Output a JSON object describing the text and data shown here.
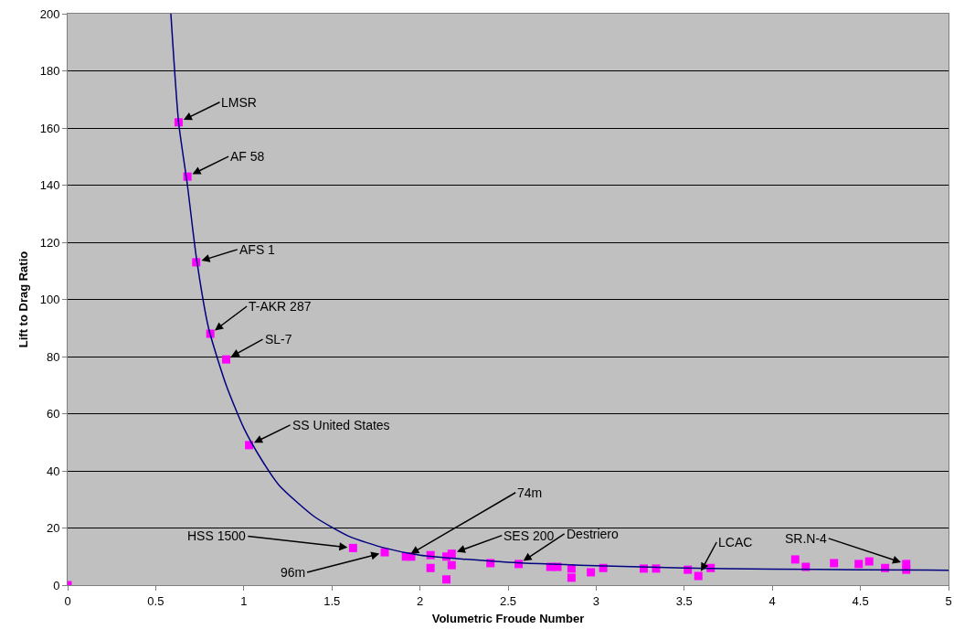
{
  "chart_data": {
    "type": "scatter",
    "xlabel": "Volumetric Froude Number",
    "ylabel": "Lift to Drag Ratio",
    "xlim": [
      0,
      5
    ],
    "xticks": [
      0,
      0.5,
      1,
      1.5,
      2,
      2.5,
      3,
      3.5,
      4,
      4.5,
      5
    ],
    "ylim": [
      0,
      200
    ],
    "yticks": [
      0,
      20,
      40,
      60,
      80,
      100,
      120,
      140,
      160,
      180,
      200
    ],
    "grid": "y",
    "series": [
      {
        "type": "scatter",
        "color": "#ff00ff",
        "marker": "square",
        "x": [
          0,
          0.63,
          0.68,
          0.73,
          0.81,
          0.9,
          1.03,
          1.62,
          1.8,
          1.92,
          1.95,
          2.06,
          2.06,
          2.15,
          2.18,
          2.18,
          2.15,
          2.4,
          2.56,
          2.74,
          2.78,
          2.86,
          2.86,
          2.97,
          3.04,
          3.27,
          3.34,
          3.52,
          3.58,
          3.65,
          4.13,
          4.19,
          4.35,
          4.49,
          4.55,
          4.64,
          4.76,
          4.76
        ],
        "values": [
          0,
          162,
          143,
          113,
          88,
          79,
          49,
          13,
          11.5,
          10,
          10,
          10.5,
          6,
          10,
          11,
          7,
          2,
          7.7,
          7.4,
          6.4,
          6.4,
          5.8,
          2.6,
          4.5,
          6,
          5.8,
          5.8,
          5.4,
          3.2,
          6,
          9,
          6.4,
          7.7,
          7.4,
          8.3,
          6,
          7.4,
          5.4
        ]
      },
      {
        "type": "line",
        "color": "#000080",
        "marker": "none",
        "line_style": "solid",
        "x": [
          0.586,
          0.63,
          0.68,
          0.73,
          0.8,
          0.9,
          1,
          1.1,
          1.2,
          1.4,
          1.6,
          1.8,
          2,
          2.5,
          3,
          3.5,
          4,
          4.5,
          5
        ],
        "values": [
          200,
          162,
          140,
          115,
          90,
          70,
          55,
          44,
          35,
          24,
          17,
          13,
          10.5,
          8,
          6.8,
          6,
          5.6,
          5.4,
          5.2
        ]
      }
    ],
    "annotations": [
      {
        "text": "LMSR",
        "x": 0.63,
        "y": 162
      },
      {
        "text": "AF 58",
        "x": 0.68,
        "y": 143
      },
      {
        "text": "AFS 1",
        "x": 0.73,
        "y": 113
      },
      {
        "text": "T-AKR 287",
        "x": 0.81,
        "y": 88
      },
      {
        "text": "SL-7",
        "x": 0.9,
        "y": 79
      },
      {
        "text": "SS United States",
        "x": 1.03,
        "y": 49
      },
      {
        "text": "HSS 1500",
        "x": 1.62,
        "y": 13
      },
      {
        "text": "96m",
        "x": 1.8,
        "y": 11.5
      },
      {
        "text": "74m",
        "x": 1.92,
        "y": 10
      },
      {
        "text": "SES 200",
        "x": 2.18,
        "y": 11
      },
      {
        "text": "Destriero",
        "x": 2.56,
        "y": 7.4
      },
      {
        "text": "LCAC",
        "x": 3.58,
        "y": 3.2
      },
      {
        "text": "SR.N-4",
        "x": 4.76,
        "y": 7.4
      }
    ]
  }
}
